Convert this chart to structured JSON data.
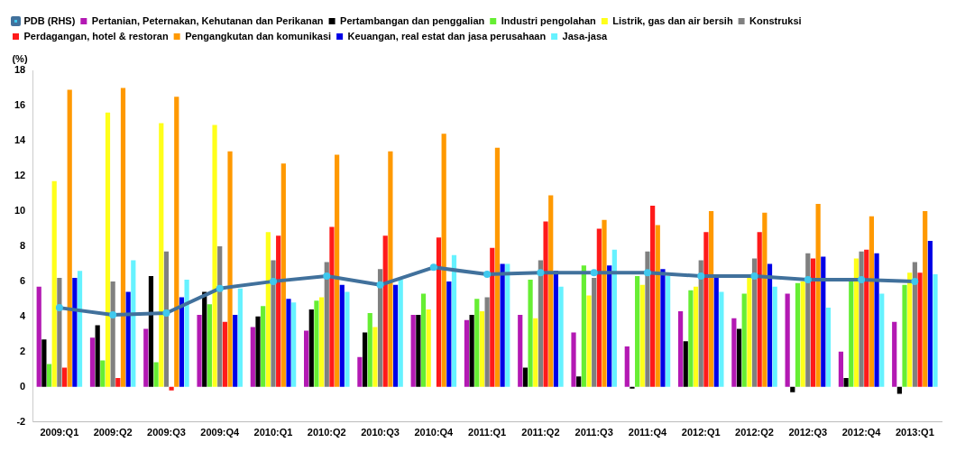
{
  "chart_data": {
    "type": "bar",
    "ylabel": "(%)",
    "legend": "top",
    "grid": false,
    "categories": [
      "2009:Q1",
      "2009:Q2",
      "2009:Q3",
      "2009:Q4",
      "2010:Q1",
      "2010:Q2",
      "2010:Q3",
      "2010:Q4",
      "2011:Q1",
      "2011:Q2",
      "2011:Q3",
      "2011:Q4",
      "2012:Q1",
      "2012:Q2",
      "2012:Q3",
      "2012:Q4",
      "2013:Q1"
    ],
    "ylim": [
      -2,
      18
    ],
    "yticks": [
      -2,
      0,
      2,
      4,
      6,
      8,
      10,
      12,
      14,
      16,
      18
    ],
    "series": [
      {
        "name": "Pertanian, Peternakan, Kehutanan dan Perikanan",
        "color": "#b319b3",
        "values": [
          5.7,
          2.8,
          3.3,
          4.1,
          3.4,
          3.2,
          1.7,
          4.1,
          3.8,
          4.1,
          3.1,
          2.3,
          4.3,
          3.9,
          5.3,
          2.0,
          3.7
        ]
      },
      {
        "name": "Pertambangan dan penggalian",
        "color": "#000000",
        "values": [
          2.7,
          3.5,
          6.3,
          5.4,
          4.0,
          4.4,
          3.1,
          4.1,
          4.1,
          1.1,
          0.6,
          -0.1,
          2.6,
          3.3,
          -0.3,
          0.5,
          -0.4
        ]
      },
      {
        "name": "Industri pengolahan",
        "color": "#66ee33",
        "values": [
          1.3,
          1.5,
          1.4,
          4.7,
          4.6,
          4.9,
          4.2,
          5.3,
          5.0,
          6.1,
          6.9,
          6.3,
          5.5,
          5.3,
          5.9,
          6.0,
          5.8
        ]
      },
      {
        "name": "Listrik, gas dan air bersih",
        "color": "#ffff1a",
        "values": [
          11.7,
          15.6,
          15.0,
          14.9,
          8.8,
          5.1,
          3.4,
          4.4,
          4.3,
          3.9,
          5.2,
          5.8,
          5.7,
          6.2,
          6.0,
          7.3,
          6.5
        ]
      },
      {
        "name": "Konstruksi",
        "color": "#808080",
        "values": [
          6.2,
          6.0,
          7.7,
          8.0,
          7.2,
          7.1,
          6.7,
          null,
          5.1,
          7.2,
          6.2,
          7.7,
          7.2,
          7.3,
          7.6,
          7.7,
          7.1
        ]
      },
      {
        "name": "Perdagangan, hotel & restoran",
        "color": "#ff1a1a",
        "values": [
          1.1,
          0.5,
          -0.2,
          3.7,
          8.6,
          9.1,
          8.6,
          8.5,
          7.9,
          9.4,
          9.0,
          10.3,
          8.8,
          8.8,
          7.3,
          7.8,
          6.5
        ]
      },
      {
        "name": "Pengangkutan dan komunikasi",
        "color": "#ff9900",
        "values": [
          16.9,
          17.0,
          16.5,
          13.4,
          12.7,
          13.2,
          13.4,
          14.4,
          13.6,
          10.9,
          9.5,
          9.2,
          10.0,
          9.9,
          10.4,
          9.7,
          10.0
        ]
      },
      {
        "name": "Keuangan, real estat dan jasa perusahaan",
        "color": "#0000e6",
        "values": [
          6.2,
          5.4,
          5.1,
          4.1,
          5.0,
          5.8,
          5.8,
          6.0,
          7.0,
          6.6,
          6.9,
          6.7,
          6.2,
          7.0,
          7.4,
          7.6,
          8.3
        ]
      },
      {
        "name": "Jasa-jasa",
        "color": "#66f2ff",
        "values": [
          6.6,
          7.2,
          6.1,
          5.6,
          4.8,
          5.4,
          6.1,
          7.5,
          7.0,
          5.7,
          7.8,
          6.3,
          5.4,
          5.7,
          4.5,
          5.3,
          6.4
        ]
      },
      {
        "name": "PDB (RHS)",
        "type": "line",
        "color": "#41719c",
        "marker": "circle",
        "values": [
          4.5,
          4.1,
          4.2,
          5.6,
          6.0,
          6.3,
          5.8,
          6.8,
          6.4,
          6.5,
          6.5,
          6.5,
          6.3,
          6.3,
          6.1,
          6.1,
          6.0
        ]
      }
    ]
  }
}
